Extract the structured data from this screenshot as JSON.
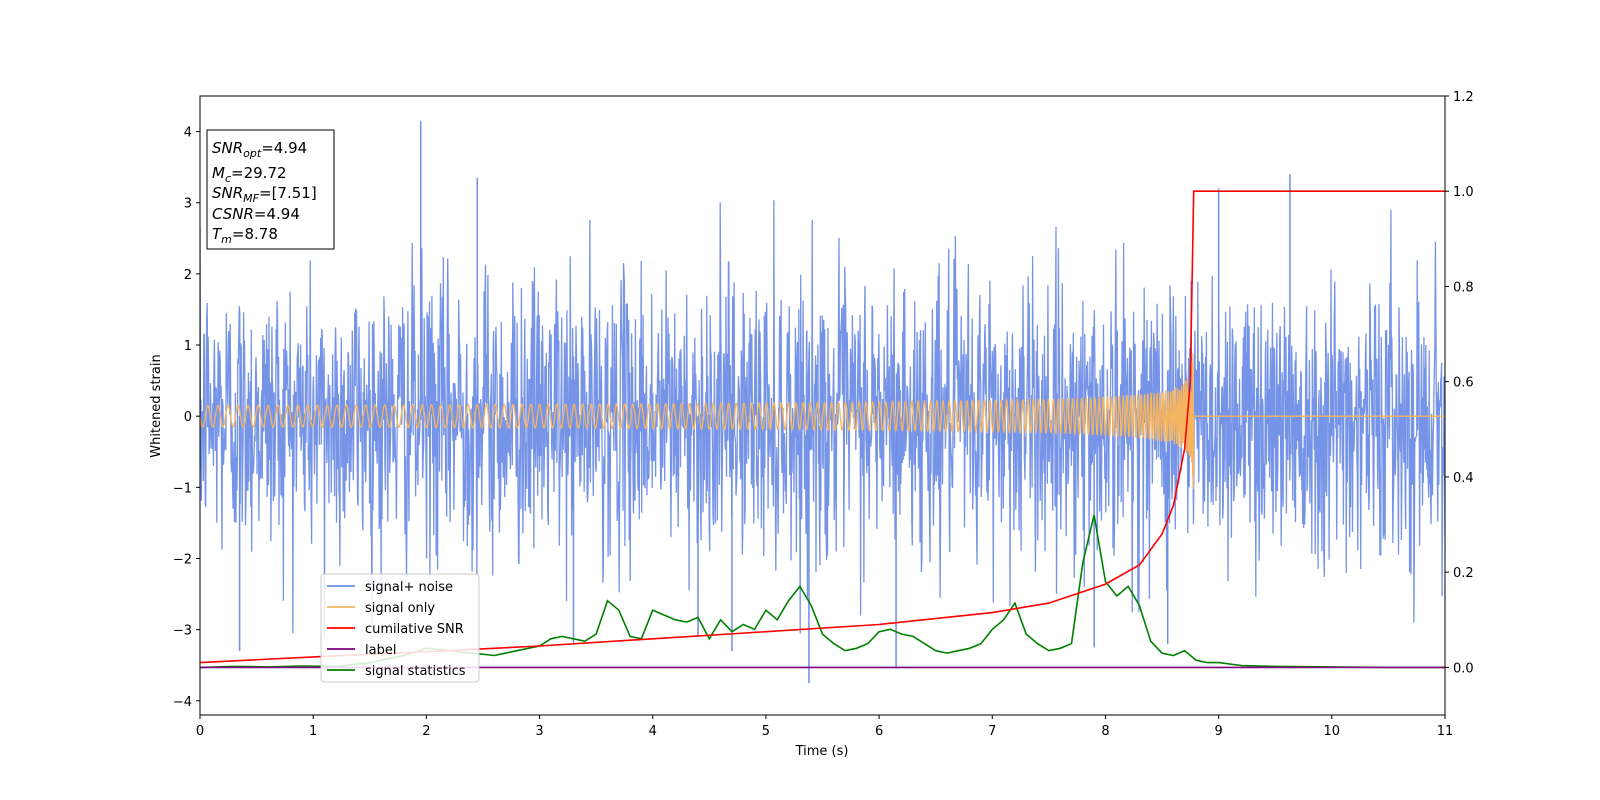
{
  "chart_data": {
    "type": "line",
    "xlabel": "Time (s)",
    "ylabel": "Whitened strain",
    "xlim": [
      0,
      11
    ],
    "ylim": [
      -4.2,
      4.5
    ],
    "ylim_right": [
      -0.1,
      1.2
    ],
    "x_ticks": [
      0,
      1,
      2,
      3,
      4,
      5,
      6,
      7,
      8,
      9,
      10,
      11
    ],
    "x_tick_labels": [
      "0",
      "1",
      "2",
      "3",
      "4",
      "5",
      "6",
      "7",
      "8",
      "9",
      "10",
      "11"
    ],
    "y_ticks": [
      -4,
      -3,
      -2,
      -1,
      0,
      1,
      2,
      3,
      4
    ],
    "y_tick_labels": [
      "−4",
      "−3",
      "−2",
      "−1",
      "0",
      "1",
      "2",
      "3",
      "4"
    ],
    "y2_ticks": [
      0.0,
      0.2,
      0.4,
      0.6,
      0.8,
      1.0,
      1.2
    ],
    "y2_tick_labels": [
      "0.0",
      "0.2",
      "0.4",
      "0.6",
      "0.8",
      "1.0",
      "1.2"
    ],
    "grid": false,
    "legend_position": "lower-left",
    "colors": {
      "noise": "#6f8ee6",
      "signal": "#f5b460",
      "cumulative": "#ff0000",
      "label": "#800080",
      "statistics": "#008000"
    },
    "info_box": {
      "lines": [
        {
          "var": "SNR",
          "sub": "opt",
          "value": "=4.94"
        },
        {
          "var": "M",
          "sub": "c",
          "value": "=29.72"
        },
        {
          "var": "SNR",
          "sub": "MF",
          "value": "=[7.51]"
        },
        {
          "var": "CSNR",
          "sub": "",
          "value": "=4.94"
        },
        {
          "var": "T",
          "sub": "m",
          "value": "=8.78"
        }
      ]
    },
    "series": [
      {
        "name": "signal+ noise",
        "axis": "left",
        "noise_std": 0.95,
        "peaks": [
          [
            0.35,
            -3.3
          ],
          [
            1.1,
            -3.1
          ],
          [
            1.95,
            4.15
          ],
          [
            2.45,
            3.35
          ],
          [
            3.3,
            -3.2
          ],
          [
            4.4,
            -3.1
          ],
          [
            4.7,
            -3.3
          ],
          [
            5.38,
            -3.75
          ],
          [
            6.15,
            -3.55
          ],
          [
            7.9,
            -3.25
          ],
          [
            8.55,
            -3.2
          ],
          [
            9.63,
            3.4
          ],
          [
            9.0,
            3.2
          ]
        ]
      },
      {
        "name": "signal only",
        "axis": "left",
        "merger_time": 8.78,
        "merger_amplitude": 1.03
      },
      {
        "name": "cumilative SNR",
        "axis": "right",
        "x": [
          0,
          1,
          2,
          3,
          4,
          5,
          6,
          7,
          7.5,
          8,
          8.3,
          8.5,
          8.6,
          8.7,
          8.75,
          8.78,
          8.8,
          11
        ],
        "y": [
          0.01,
          0.022,
          0.033,
          0.045,
          0.06,
          0.075,
          0.09,
          0.115,
          0.135,
          0.175,
          0.215,
          0.28,
          0.34,
          0.46,
          0.6,
          1.0,
          1.0,
          1.0
        ]
      },
      {
        "name": "label",
        "axis": "right",
        "x": [
          0,
          11
        ],
        "y": [
          0,
          0
        ]
      },
      {
        "name": "signal statistics",
        "axis": "right",
        "x": [
          0,
          0.3,
          0.6,
          0.9,
          1.2,
          1.5,
          1.8,
          2.0,
          2.2,
          2.4,
          2.6,
          2.8,
          3.0,
          3.1,
          3.2,
          3.3,
          3.4,
          3.5,
          3.6,
          3.7,
          3.8,
          3.9,
          4.0,
          4.1,
          4.2,
          4.3,
          4.4,
          4.5,
          4.6,
          4.7,
          4.8,
          4.9,
          5.0,
          5.1,
          5.2,
          5.3,
          5.4,
          5.5,
          5.6,
          5.7,
          5.8,
          5.9,
          6.0,
          6.1,
          6.2,
          6.3,
          6.4,
          6.5,
          6.6,
          6.7,
          6.8,
          6.9,
          7.0,
          7.1,
          7.2,
          7.3,
          7.4,
          7.5,
          7.6,
          7.7,
          7.8,
          7.9,
          8.0,
          8.1,
          8.2,
          8.3,
          8.4,
          8.5,
          8.6,
          8.7,
          8.8,
          8.9,
          9.0,
          9.2,
          9.5,
          10.0,
          10.5,
          11.0
        ],
        "y": [
          0,
          0.002,
          0.001,
          0.003,
          0.002,
          0.01,
          0.025,
          0.04,
          0.035,
          0.03,
          0.025,
          0.035,
          0.045,
          0.06,
          0.065,
          0.06,
          0.055,
          0.07,
          0.14,
          0.12,
          0.065,
          0.06,
          0.12,
          0.11,
          0.1,
          0.095,
          0.105,
          0.06,
          0.1,
          0.075,
          0.09,
          0.08,
          0.12,
          0.1,
          0.14,
          0.17,
          0.13,
          0.07,
          0.05,
          0.035,
          0.04,
          0.05,
          0.075,
          0.08,
          0.07,
          0.065,
          0.05,
          0.035,
          0.03,
          0.035,
          0.04,
          0.05,
          0.08,
          0.1,
          0.135,
          0.07,
          0.05,
          0.035,
          0.04,
          0.05,
          0.22,
          0.32,
          0.18,
          0.15,
          0.17,
          0.13,
          0.055,
          0.03,
          0.025,
          0.035,
          0.015,
          0.01,
          0.01,
          0.004,
          0.002,
          0.001,
          0,
          0
        ]
      }
    ]
  }
}
